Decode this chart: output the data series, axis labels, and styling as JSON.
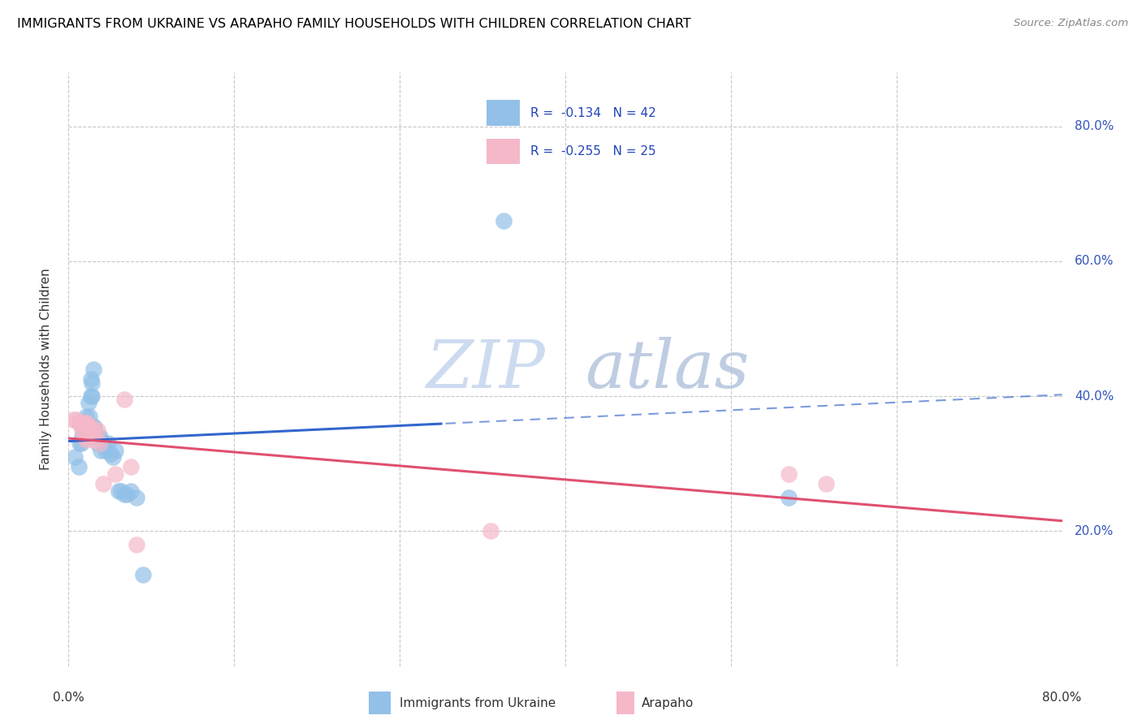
{
  "title": "IMMIGRANTS FROM UKRAINE VS ARAPAHO FAMILY HOUSEHOLDS WITH CHILDREN CORRELATION CHART",
  "source": "Source: ZipAtlas.com",
  "ylabel": "Family Households with Children",
  "legend_label1": "Immigrants from Ukraine",
  "legend_label2": "Arapaho",
  "R1": "-0.134",
  "N1": "42",
  "R2": "-0.255",
  "N2": "25",
  "blue_color": "#92c0e8",
  "pink_color": "#f5b8c8",
  "trendline_blue": "#3366cc",
  "trendline_pink": "#e05070",
  "watermark_zip": "ZIP",
  "watermark_atlas": "atlas",
  "xlim": [
    0.0,
    0.8
  ],
  "ylim": [
    0.0,
    0.88
  ],
  "gridline_y": [
    0.2,
    0.4,
    0.6,
    0.8
  ],
  "gridline_x": [
    0.0,
    0.1333,
    0.2667,
    0.4,
    0.5333,
    0.6667,
    0.8
  ],
  "ukraine_x": [
    0.005,
    0.008,
    0.009,
    0.01,
    0.011,
    0.012,
    0.013,
    0.013,
    0.014,
    0.014,
    0.015,
    0.016,
    0.016,
    0.017,
    0.017,
    0.018,
    0.018,
    0.019,
    0.019,
    0.02,
    0.02,
    0.021,
    0.022,
    0.023,
    0.024,
    0.025,
    0.026,
    0.027,
    0.03,
    0.032,
    0.034,
    0.036,
    0.038,
    0.04,
    0.042,
    0.045,
    0.047,
    0.05,
    0.055,
    0.06,
    0.35,
    0.58
  ],
  "ukraine_y": [
    0.31,
    0.295,
    0.33,
    0.33,
    0.34,
    0.345,
    0.345,
    0.36,
    0.35,
    0.37,
    0.345,
    0.36,
    0.39,
    0.35,
    0.37,
    0.4,
    0.425,
    0.4,
    0.42,
    0.44,
    0.355,
    0.355,
    0.34,
    0.33,
    0.34,
    0.34,
    0.32,
    0.33,
    0.32,
    0.33,
    0.315,
    0.31,
    0.32,
    0.26,
    0.26,
    0.255,
    0.255,
    0.26,
    0.25,
    0.135,
    0.66,
    0.25
  ],
  "arapaho_x": [
    0.004,
    0.006,
    0.008,
    0.009,
    0.011,
    0.013,
    0.013,
    0.014,
    0.015,
    0.016,
    0.017,
    0.018,
    0.019,
    0.02,
    0.022,
    0.023,
    0.025,
    0.028,
    0.038,
    0.045,
    0.05,
    0.055,
    0.34,
    0.58,
    0.61
  ],
  "arapaho_y": [
    0.365,
    0.365,
    0.36,
    0.36,
    0.35,
    0.36,
    0.34,
    0.335,
    0.36,
    0.355,
    0.34,
    0.355,
    0.345,
    0.35,
    0.335,
    0.35,
    0.33,
    0.27,
    0.285,
    0.395,
    0.295,
    0.18,
    0.2,
    0.285,
    0.27
  ]
}
